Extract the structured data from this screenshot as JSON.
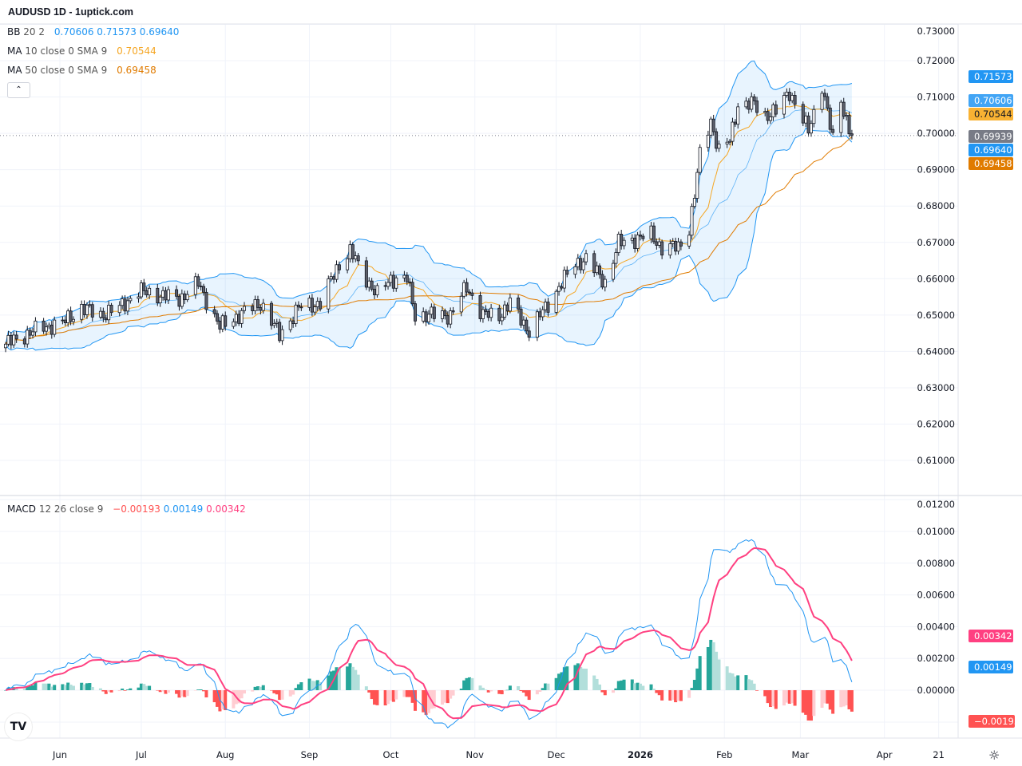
{
  "title": "AUDUSD 1D - 1uptick.com",
  "legend": {
    "bb": {
      "name": "BB",
      "params": "20 2",
      "values": [
        "0.70606",
        "0.71573",
        "0.69640"
      ],
      "color": "#2196f3"
    },
    "ma10": {
      "name": "MA",
      "params": "10 close 0 SMA 9",
      "value": "0.70544",
      "color": "#f5a623"
    },
    "ma50": {
      "name": "MA",
      "params": "50 close 0 SMA 9",
      "value": "0.69458",
      "color": "#e07b00"
    },
    "macd": {
      "name": "MACD",
      "params": "12 26 close 9",
      "values": [
        "−0.00193",
        "0.00149",
        "0.00342"
      ],
      "colors": [
        "#ff5252",
        "#2196f3",
        "#ff4081"
      ]
    }
  },
  "collapse_icon": "chevron-up-icon",
  "logo": "TV",
  "settings_icon": "gear-icon",
  "chart_data": {
    "type": "candlestick",
    "symbol": "AUDUSD",
    "interval": "1D",
    "price_axis": {
      "ylim": [
        0.605,
        0.73
      ],
      "ticks": [
        "0.73000",
        "0.72000",
        "0.71000",
        "0.70000",
        "0.69000",
        "0.68000",
        "0.67000",
        "0.66000",
        "0.65000",
        "0.64000",
        "0.63000",
        "0.62000",
        "0.61000"
      ]
    },
    "macd_axis": {
      "ylim": [
        -0.0024,
        0.012
      ],
      "ticks": [
        "0.01200",
        "0.01000",
        "0.00800",
        "0.00600",
        "0.00400",
        "0.00200",
        "0.00000"
      ]
    },
    "time_ticks": [
      {
        "label": "Jun",
        "date": "2025-06-01"
      },
      {
        "label": "Jul",
        "date": "2025-07-01"
      },
      {
        "label": "Aug",
        "date": "2025-08-01"
      },
      {
        "label": "Sep",
        "date": "2025-09-01"
      },
      {
        "label": "Oct",
        "date": "2025-10-01"
      },
      {
        "label": "Nov",
        "date": "2025-11-01"
      },
      {
        "label": "Dec",
        "date": "2025-12-01"
      },
      {
        "label": "2026",
        "date": "2026-01-01",
        "bold": true
      },
      {
        "label": "Feb",
        "date": "2026-02-01"
      },
      {
        "label": "Mar",
        "date": "2026-03-01"
      },
      {
        "label": "Apr",
        "date": "2026-04-01"
      },
      {
        "label": "21",
        "date": "2026-04-21"
      }
    ],
    "approx_closes": [
      [
        "2025-05-12",
        0.642
      ],
      [
        "2025-05-19",
        0.6445
      ],
      [
        "2025-05-26",
        0.6467
      ],
      [
        "2025-06-02",
        0.6478
      ],
      [
        "2025-06-09",
        0.652
      ],
      [
        "2025-06-16",
        0.65
      ],
      [
        "2025-06-23",
        0.652
      ],
      [
        "2025-06-30",
        0.6566
      ],
      [
        "2025-07-08",
        0.6555
      ],
      [
        "2025-07-15",
        0.6544
      ],
      [
        "2025-07-22",
        0.6587
      ],
      [
        "2025-07-30",
        0.6467
      ],
      [
        "2025-08-06",
        0.65
      ],
      [
        "2025-08-14",
        0.6533
      ],
      [
        "2025-08-21",
        0.6445
      ],
      [
        "2025-08-28",
        0.652
      ],
      [
        "2025-09-05",
        0.6533
      ],
      [
        "2025-09-12",
        0.6642
      ],
      [
        "2025-09-16",
        0.6675
      ],
      [
        "2025-09-22",
        0.66
      ],
      [
        "2025-09-26",
        0.6555
      ],
      [
        "2025-10-01",
        0.66
      ],
      [
        "2025-10-07",
        0.66
      ],
      [
        "2025-10-10",
        0.65
      ],
      [
        "2025-10-17",
        0.65
      ],
      [
        "2025-10-23",
        0.65
      ],
      [
        "2025-10-29",
        0.6577
      ],
      [
        "2025-11-04",
        0.65
      ],
      [
        "2025-11-10",
        0.65
      ],
      [
        "2025-11-14",
        0.6533
      ],
      [
        "2025-11-21",
        0.6456
      ],
      [
        "2025-11-27",
        0.652
      ],
      [
        "2025-12-02",
        0.6577
      ],
      [
        "2025-12-08",
        0.6642
      ],
      [
        "2025-12-12",
        0.6653
      ],
      [
        "2025-12-19",
        0.659
      ],
      [
        "2025-12-24",
        0.6697
      ],
      [
        "2025-12-29",
        0.6708
      ],
      [
        "2026-01-05",
        0.672
      ],
      [
        "2026-01-09",
        0.6686
      ],
      [
        "2026-01-15",
        0.6686
      ],
      [
        "2026-01-19",
        0.674
      ],
      [
        "2026-01-21",
        0.683
      ],
      [
        "2026-01-23",
        0.694
      ],
      [
        "2026-01-27",
        0.7037
      ],
      [
        "2026-01-30",
        0.695
      ],
      [
        "2026-02-03",
        0.698
      ],
      [
        "2026-02-06",
        0.708
      ],
      [
        "2026-02-12",
        0.708
      ],
      [
        "2026-02-16",
        0.705
      ],
      [
        "2026-02-20",
        0.706
      ],
      [
        "2026-02-25",
        0.7115
      ],
      [
        "2026-03-02",
        0.7037
      ],
      [
        "2026-03-04",
        0.7005
      ],
      [
        "2026-03-09",
        0.7136
      ],
      [
        "2026-03-13",
        0.698
      ],
      [
        "2026-03-16",
        0.709
      ],
      [
        "2026-03-19",
        0.7015
      ],
      [
        "2026-03-20",
        0.69939
      ]
    ],
    "last_labels": {
      "bb_upper": {
        "text": "0.71573",
        "color": "#2196f3"
      },
      "bb_basis": {
        "text": "0.70606",
        "color": "#42a5f5"
      },
      "ma10": {
        "text": "0.70544",
        "color": "#f9b233"
      },
      "last_price": {
        "text": "0.69939",
        "color": "#787b86"
      },
      "bb_lower": {
        "text": "0.69640",
        "color": "#2196f3"
      },
      "ma50": {
        "text": "0.69458",
        "color": "#e07b00"
      },
      "signal": {
        "text": "0.00342",
        "color": "#ff4081"
      },
      "macd": {
        "text": "0.00149",
        "color": "#2196f3"
      },
      "hist": {
        "text": "−0.00193",
        "color": "#ff5252"
      }
    },
    "colors": {
      "up_body": "#ffffff",
      "down_body": "#5d606b",
      "wick": "#131722",
      "bb": "#2196f3",
      "bb_fill": "rgba(33,150,243,0.10)",
      "ma10": "#f5a623",
      "ma50": "#e07b00",
      "macd": "#2196f3",
      "signal": "#ff4081",
      "hist_up_strong": "#26a69a",
      "hist_up_weak": "#b2dfdb",
      "hist_dn_strong": "#ff5252",
      "hist_dn_weak": "#ffcdd2",
      "grid": "#f0f3fa"
    }
  }
}
